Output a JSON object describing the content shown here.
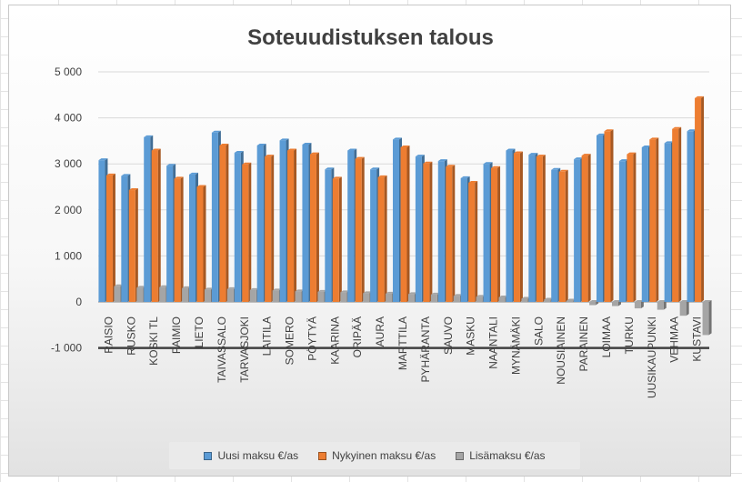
{
  "chart_data": {
    "type": "bar",
    "title": "Soteuudistuksen talous",
    "xlabel": "",
    "ylabel": "",
    "ylim": [
      -1000,
      5000
    ],
    "yticks": [
      -1000,
      0,
      1000,
      2000,
      3000,
      4000,
      5000
    ],
    "ytick_labels": [
      "-1 000",
      "0",
      "1 000",
      "2 000",
      "3 000",
      "4 000",
      "5 000"
    ],
    "grid": true,
    "legend_position": "bottom",
    "categories": [
      "RAISIO",
      "RUSKO",
      "KOSKI TL",
      "PAIMIO",
      "LIETO",
      "TAIVASSALO",
      "TARVASJOKI",
      "LAITILA",
      "SOMERO",
      "PÖYTYÄ",
      "KAARINA",
      "ORIPÄÄ",
      "AURA",
      "MARTTILA",
      "PYHÄRANTA",
      "SAUVO",
      "MASKU",
      "NAANTALI",
      "MYNÄMÄKI",
      "SALO",
      "NOUSIAINEN",
      "PARAINEN",
      "LOIMAA",
      "TURKU",
      "UUSIKAUPUNKI",
      "VEHMAA",
      "KUSTAVI"
    ],
    "series": [
      {
        "name": "Uusi maksu €/as",
        "color": "#5b9bd5",
        "values": [
          3080,
          2740,
          3580,
          2960,
          2770,
          3680,
          3240,
          3400,
          3510,
          3420,
          2880,
          3290,
          2880,
          3530,
          3160,
          3060,
          2690,
          3000,
          3290,
          3200,
          2870,
          3100,
          3620,
          3060,
          3360,
          3450,
          3710
        ]
      },
      {
        "name": "Nykyinen maksu €/as",
        "color": "#ed7d31",
        "values": [
          2750,
          2430,
          3290,
          2680,
          2500,
          3400,
          2990,
          3160,
          3290,
          3210,
          2680,
          3110,
          2710,
          3360,
          3010,
          2940,
          2590,
          2910,
          3230,
          3160,
          2830,
          3180,
          3710,
          3210,
          3530,
          3760,
          4430
        ]
      },
      {
        "name": "Lisämaksu €/as",
        "color": "#a5a5a5",
        "values": [
          340,
          310,
          320,
          300,
          270,
          280,
          260,
          250,
          230,
          220,
          210,
          190,
          180,
          170,
          160,
          130,
          110,
          100,
          70,
          50,
          30,
          -70,
          -90,
          -140,
          -170,
          -300,
          -720
        ]
      }
    ]
  }
}
